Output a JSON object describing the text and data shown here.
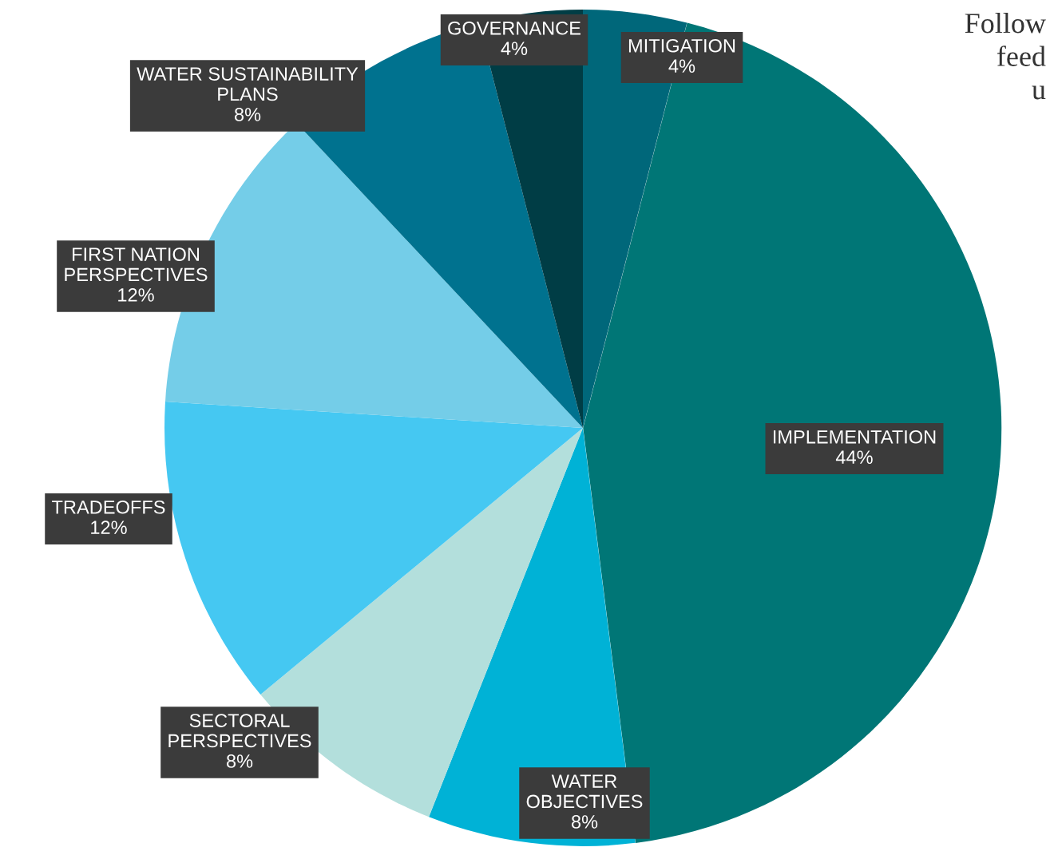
{
  "chart_data": {
    "type": "pie",
    "categories": [
      "MITIGATION",
      "IMPLEMENTATION",
      "WATER\nOBJECTIVES",
      "SECTORAL\nPERSPECTIVES",
      "TRADEOFFS",
      "FIRST NATION\nPERSPECTIVES",
      "WATER SUSTAINABILITY\nPLANS",
      "GOVERNANCE"
    ],
    "values": [
      4,
      44,
      8,
      8,
      12,
      12,
      8,
      4
    ],
    "colors": [
      "#00677a",
      "#007676",
      "#00b2d6",
      "#b3dfdc",
      "#45c8f2",
      "#74cde8",
      "#00728f",
      "#003d45"
    ],
    "value_labels": [
      "4%",
      "44%",
      "8%",
      "8%",
      "12%",
      "12%",
      "8%",
      "4%"
    ],
    "annotations": [
      "Follow\nfeed\nu"
    ],
    "legend": false
  }
}
